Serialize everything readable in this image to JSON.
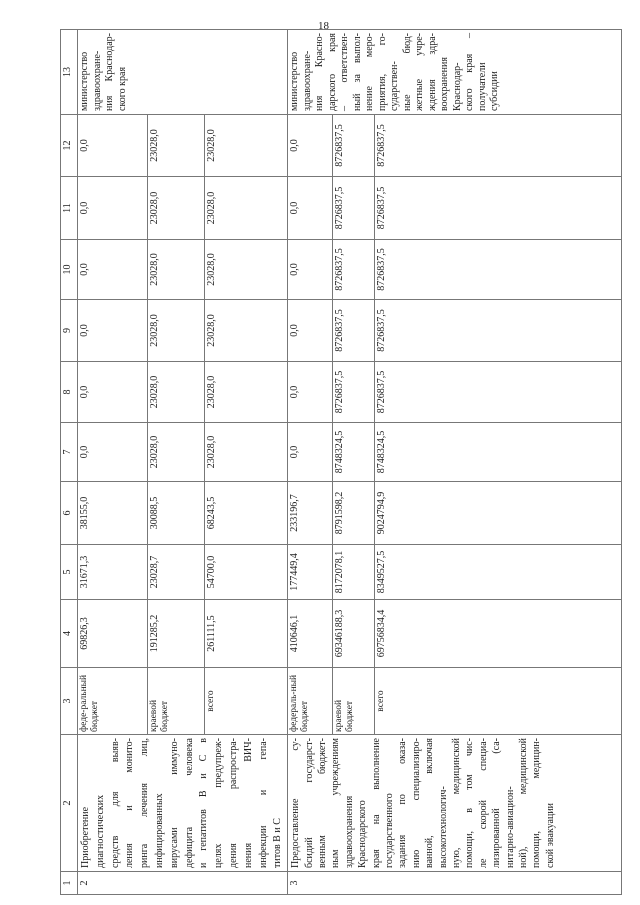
{
  "page_number": "18",
  "header": [
    "1",
    "2",
    "3",
    "4",
    "5",
    "6",
    "7",
    "8",
    "9",
    "10",
    "11",
    "12",
    "13"
  ],
  "rows": [
    {
      "num": "2",
      "description_lines": [
        "Приобретение",
        "диагностических",
        "средств для выяв-",
        "ления и монито-",
        "ринга лечения лиц,",
        "инфицированных",
        "вирусами иммуно-",
        "дефицита человека",
        "и гепатитов В и С в",
        "целях предупреж-",
        "дения распростра-",
        "нения ВИЧ-",
        "инфекции и гепа-",
        "титов В и С"
      ],
      "responsible_lines": [
        "министерство",
        "здравоохране-",
        "ния Краснодар-",
        "ского края"
      ],
      "sources": [
        {
          "source": "феде-ральный бюджет",
          "values": [
            "69826,3",
            "31671,3",
            "38155,0",
            "0,0",
            "0,0",
            "0,0",
            "0,0",
            "0,0",
            "0,0"
          ]
        },
        {
          "source": "краевой бюджет",
          "values": [
            "191285,2",
            "23028,7",
            "30088,5",
            "23028,0",
            "23028,0",
            "23028,0",
            "23028,0",
            "23028,0",
            "23028,0"
          ]
        },
        {
          "source": "всего",
          "values": [
            "261111,5",
            "54700,0",
            "68243,5",
            "23028,0",
            "23028,0",
            "23028,0",
            "23028,0",
            "23028,0",
            "23028,0"
          ]
        }
      ]
    },
    {
      "num": "3",
      "description_lines": [
        "Предоставление су-",
        "бсидий государст-",
        "венным бюджет-",
        "ным учреждениям",
        "здравоохранения",
        "Краснодарского",
        "края на выполнение",
        "государственного",
        "задания по оказа-",
        "нию специализиро-",
        "ванной, включая",
        "высокотехнологич-",
        "ную, медицинской",
        "помощи, в том чис-",
        "ле скорой специа-",
        "лизированной (са-",
        "нитарно-авиацион-",
        "ной), медицинской",
        "помощи, медицин-",
        "ской эвакуации"
      ],
      "responsible_lines": [
        "министерство",
        "здравоохране-",
        "ния Красно-",
        "дарского края",
        "– ответствен-",
        "ный за выпол-",
        "нение меро-",
        "приятия, го-",
        "сударствен-",
        "ные бюд-",
        "жетные учре-",
        "ждения здра-",
        "воохранения",
        "Краснодар-",
        "ского края –",
        "получатели",
        "субсидии"
      ],
      "sources": [
        {
          "source": "федераль-ный бюджет",
          "values": [
            "410646,1",
            "177449,4",
            "233196,7",
            "0,0",
            "0,0",
            "0,0",
            "0,0",
            "0,0",
            "0,0"
          ]
        },
        {
          "source": "краевой бюджет",
          "values": [
            "69346188,3",
            "8172078,1",
            "8791598,2",
            "8748324,5",
            "8726837,5",
            "8726837,5",
            "8726837,5",
            "8726837,5",
            "8726837,5"
          ]
        },
        {
          "source": "всего",
          "values": [
            "69756834,4",
            "8349527,5",
            "9024794,9",
            "8748324,5",
            "8726837,5",
            "8726837,5",
            "8726837,5",
            "8726837,5",
            "8726837,5"
          ]
        }
      ]
    }
  ]
}
